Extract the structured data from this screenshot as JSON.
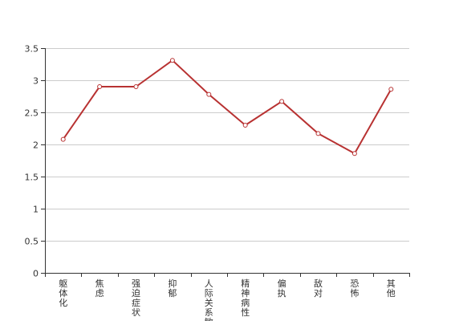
{
  "chart_data": {
    "type": "line",
    "title": "",
    "xlabel": "",
    "ylabel": "",
    "categories": [
      "躯体化",
      "焦虑",
      "强迫症状",
      "抑郁",
      "人际关系敏感",
      "精神病性",
      "偏执",
      "敌对",
      "恐怖",
      "其他"
    ],
    "series": [
      {
        "values": [
          2.08,
          2.9,
          2.9,
          3.31,
          2.78,
          2.3,
          2.67,
          2.17,
          1.86,
          2.86
        ],
        "color": "#b83232"
      }
    ],
    "ylim": [
      0,
      3.5
    ],
    "yticks": [
      0,
      0.5,
      1,
      1.5,
      2,
      2.5,
      3,
      3.5
    ],
    "ytick_labels": [
      "0",
      "0.5",
      "1",
      "1.5",
      "2",
      "2.5",
      "3",
      "3.5"
    ],
    "grid": true,
    "legend": "none"
  }
}
